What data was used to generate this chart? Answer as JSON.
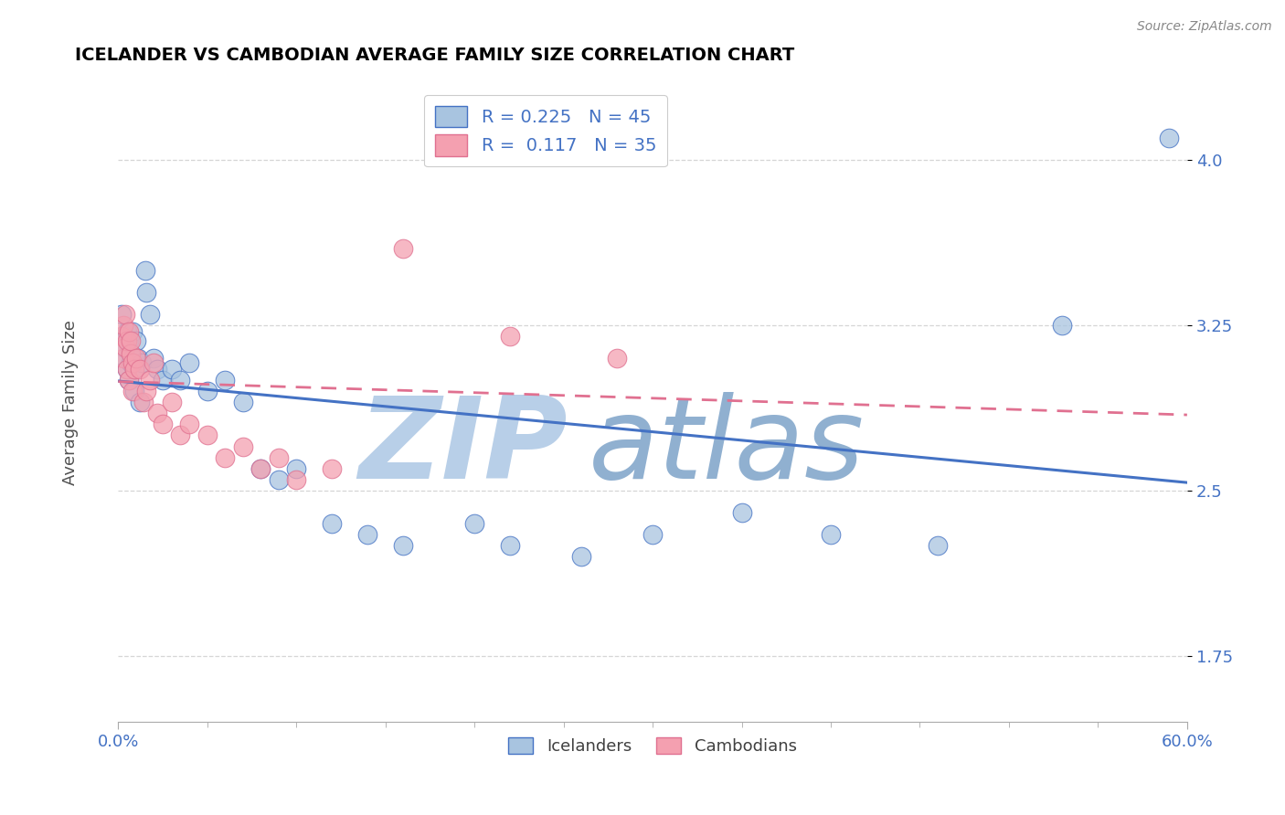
{
  "title": "ICELANDER VS CAMBODIAN AVERAGE FAMILY SIZE CORRELATION CHART",
  "source_text": "Source: ZipAtlas.com",
  "ylabel": "Average Family Size",
  "xlim": [
    0.0,
    0.6
  ],
  "ylim": [
    1.45,
    4.35
  ],
  "yticks": [
    1.75,
    2.5,
    3.25,
    4.0
  ],
  "xtick_left_label": "0.0%",
  "xtick_right_label": "60.0%",
  "R_ice": 0.225,
  "N_ice": 45,
  "R_cam": 0.117,
  "N_cam": 35,
  "icelander_color": "#a8c4e0",
  "cambodian_color": "#f4a0b0",
  "trend_ice_color": "#4472c4",
  "trend_cam_color": "#e07090",
  "watermark_zip": "ZIP",
  "watermark_atlas": "atlas",
  "watermark_color": "#c8d8e8",
  "background_color": "#ffffff",
  "grid_color": "#cccccc",
  "axis_label_color": "#505050",
  "tick_color": "#4472c4",
  "title_color": "#000000",
  "icelander_x": [
    0.002,
    0.003,
    0.004,
    0.004,
    0.005,
    0.005,
    0.006,
    0.006,
    0.007,
    0.007,
    0.008,
    0.008,
    0.009,
    0.009,
    0.01,
    0.011,
    0.012,
    0.013,
    0.015,
    0.016,
    0.018,
    0.02,
    0.022,
    0.025,
    0.03,
    0.035,
    0.04,
    0.05,
    0.06,
    0.07,
    0.08,
    0.09,
    0.1,
    0.12,
    0.14,
    0.16,
    0.2,
    0.22,
    0.26,
    0.3,
    0.35,
    0.4,
    0.46,
    0.53,
    0.59
  ],
  "icelander_y": [
    3.3,
    3.15,
    3.2,
    3.1,
    3.22,
    3.05,
    3.18,
    3.0,
    3.12,
    3.08,
    3.22,
    3.1,
    3.05,
    2.95,
    3.18,
    3.1,
    2.9,
    3.08,
    3.5,
    3.4,
    3.3,
    3.1,
    3.05,
    3.0,
    3.05,
    3.0,
    3.08,
    2.95,
    3.0,
    2.9,
    2.6,
    2.55,
    2.6,
    2.35,
    2.3,
    2.25,
    2.35,
    2.25,
    2.2,
    2.3,
    2.4,
    2.3,
    2.25,
    3.25,
    4.1
  ],
  "cambodian_x": [
    0.002,
    0.003,
    0.003,
    0.004,
    0.004,
    0.005,
    0.005,
    0.006,
    0.006,
    0.007,
    0.007,
    0.008,
    0.008,
    0.009,
    0.01,
    0.012,
    0.014,
    0.016,
    0.018,
    0.02,
    0.022,
    0.025,
    0.03,
    0.035,
    0.04,
    0.05,
    0.06,
    0.07,
    0.08,
    0.09,
    0.1,
    0.12,
    0.16,
    0.22,
    0.28
  ],
  "cambodian_y": [
    3.2,
    3.25,
    3.1,
    3.3,
    3.15,
    3.18,
    3.05,
    3.22,
    3.0,
    3.12,
    3.18,
    3.08,
    2.95,
    3.05,
    3.1,
    3.05,
    2.9,
    2.95,
    3.0,
    3.08,
    2.85,
    2.8,
    2.9,
    2.75,
    2.8,
    2.75,
    2.65,
    2.7,
    2.6,
    2.65,
    2.55,
    2.6,
    3.6,
    3.2,
    3.1
  ]
}
